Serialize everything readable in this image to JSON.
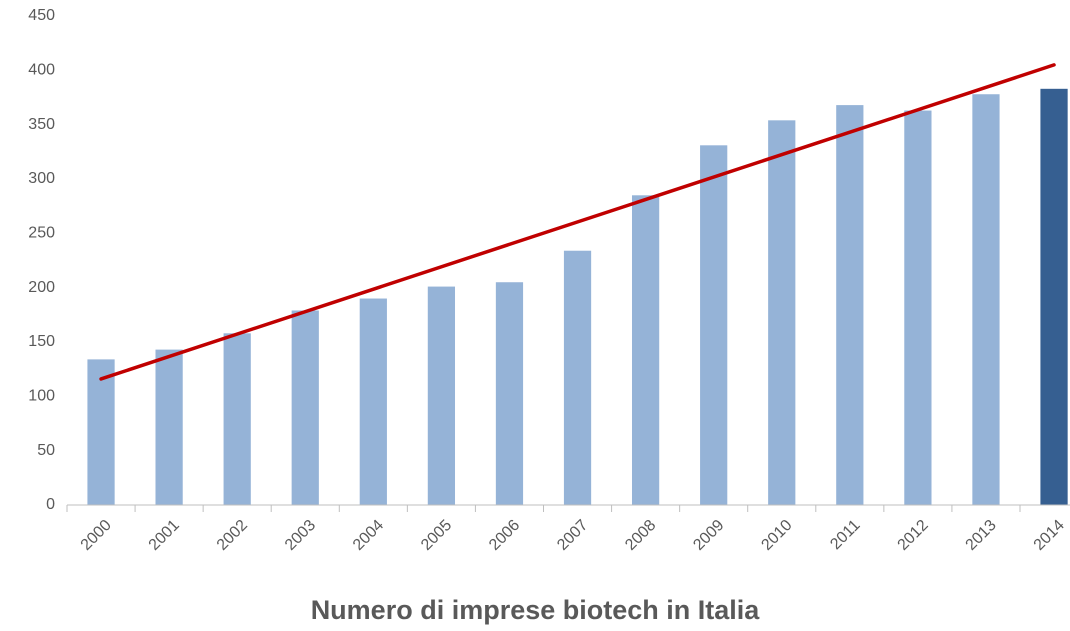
{
  "chart_data": {
    "type": "bar",
    "title": "Numero di imprese biotech in Italia",
    "categories": [
      "2000",
      "2001",
      "2002",
      "2003",
      "2004",
      "2005",
      "2006",
      "2007",
      "2008",
      "2009",
      "2010",
      "2011",
      "2012",
      "2013",
      "2014"
    ],
    "values": [
      134,
      143,
      158,
      179,
      190,
      201,
      205,
      234,
      285,
      331,
      354,
      368,
      363,
      378,
      383
    ],
    "colors": [
      "#95b3d7",
      "#95b3d7",
      "#95b3d7",
      "#95b3d7",
      "#95b3d7",
      "#95b3d7",
      "#95b3d7",
      "#95b3d7",
      "#95b3d7",
      "#95b3d7",
      "#95b3d7",
      "#95b3d7",
      "#95b3d7",
      "#95b3d7",
      "#365f91"
    ],
    "trendline": {
      "color": "#c00000",
      "values": [
        116,
        405
      ]
    },
    "ylim": [
      0,
      450
    ],
    "yticks": [
      0,
      50,
      100,
      150,
      200,
      250,
      300,
      350,
      400,
      450
    ],
    "grid": false
  }
}
